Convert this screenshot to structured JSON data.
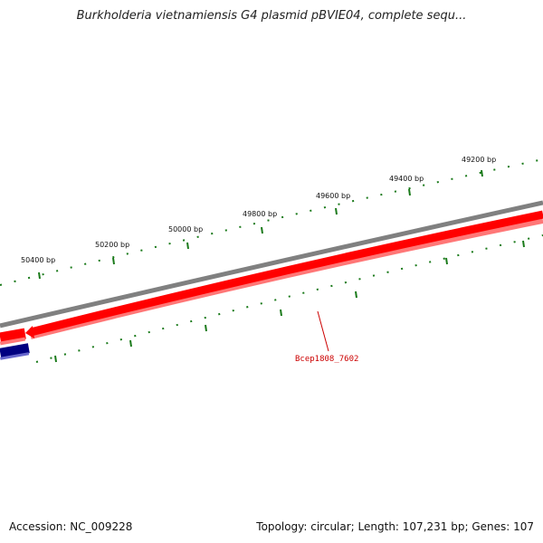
{
  "title": "Burkholderia vietnamiensis G4 plasmid pBVIE04, complete sequ...",
  "footer": {
    "accession": "Accession: NC_009228",
    "summary": "Topology: circular; Length: 107,231 bp; Genes: 107"
  },
  "map": {
    "outer_scale_labels": [
      "49200 bp",
      "49400 bp",
      "49600 bp",
      "49800 bp",
      "50000 bp",
      "50200 bp",
      "50400 bp"
    ],
    "gene_label": "Bcep1808_7602",
    "colors": {
      "backbone": "#808080",
      "forward_gene": "#ff0000",
      "forward_gene_shadow": "#ff7777",
      "reverse_gene": "#000080",
      "ticks": "#1a7a1a",
      "gene_label": "#cc0000"
    }
  }
}
